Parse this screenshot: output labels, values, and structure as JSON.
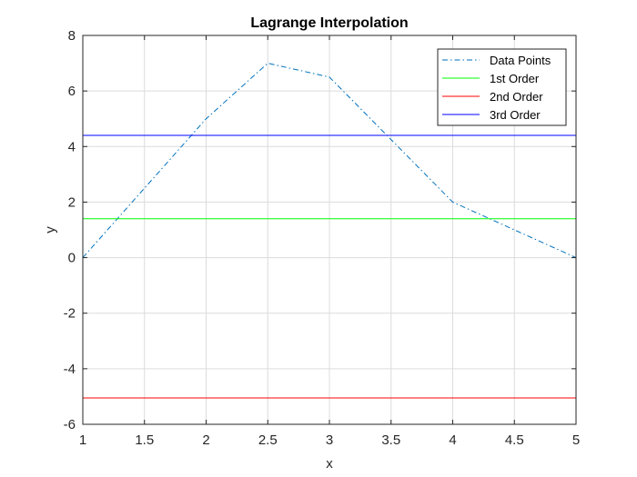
{
  "chart_data": {
    "type": "line",
    "title": "Lagrange Interpolation",
    "xlabel": "x",
    "ylabel": "y",
    "xlim": [
      1,
      5
    ],
    "ylim": [
      -6,
      8
    ],
    "xticks": [
      1,
      1.5,
      2,
      2.5,
      3,
      3.5,
      4,
      4.5,
      5
    ],
    "xtick_labels": [
      "1",
      "1.5",
      "2",
      "2.5",
      "3",
      "3.5",
      "4",
      "4.5",
      "5"
    ],
    "yticks": [
      -6,
      -4,
      -2,
      0,
      2,
      4,
      6,
      8
    ],
    "ytick_labels": [
      "-6",
      "-4",
      "-2",
      "0",
      "2",
      "4",
      "6",
      "8"
    ],
    "grid": true,
    "legend_position": "top-right",
    "series": [
      {
        "name": "Data Points",
        "color": "#0072BD",
        "style": "dashdot",
        "x": [
          1,
          2,
          2.5,
          3,
          4,
          5
        ],
        "y": [
          0,
          5,
          7,
          6.5,
          2,
          0
        ]
      },
      {
        "name": "1st Order",
        "color": "#00FF00",
        "style": "solid",
        "x": [
          1,
          5
        ],
        "y": [
          1.4,
          1.4
        ]
      },
      {
        "name": "2nd Order",
        "color": "#FF0000",
        "style": "solid",
        "x": [
          1,
          5
        ],
        "y": [
          -5.05,
          -5.05
        ]
      },
      {
        "name": "3rd Order",
        "color": "#0000FF",
        "style": "solid",
        "x": [
          1,
          5
        ],
        "y": [
          4.4,
          4.4
        ]
      }
    ]
  }
}
